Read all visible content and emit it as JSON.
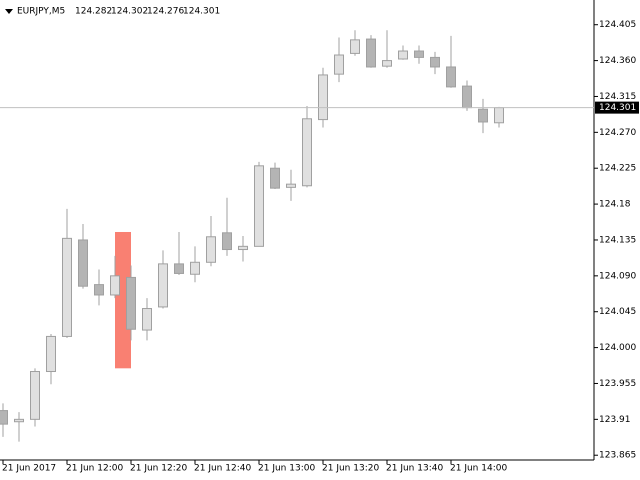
{
  "chart_data": {
    "type": "candlestick",
    "symbol": "EURJPY,M5",
    "categories": [
      "21 Jun 2017",
      null,
      null,
      null,
      "21 Jun 12:00",
      null,
      null,
      null,
      "21 Jun 12:20",
      null,
      null,
      null,
      "21 Jun 12:40",
      null,
      null,
      null,
      "21 Jun 13:00",
      null,
      null,
      null,
      "21 Jun 13:20",
      null,
      null,
      null,
      "21 Jun 13:40",
      null,
      null,
      null,
      "21 Jun 14:00",
      null,
      null,
      null
    ],
    "open": [
      123.921,
      123.907,
      123.91,
      123.97,
      124.014,
      124.135,
      124.079,
      124.066,
      124.088,
      124.022,
      124.051,
      124.105,
      124.092,
      124.107,
      124.144,
      124.123,
      124.127,
      124.225,
      124.201,
      124.203,
      124.286,
      124.343,
      124.369,
      124.387,
      124.353,
      124.362,
      124.372,
      124.364,
      124.352,
      124.328,
      124.299,
      124.282
    ],
    "high": [
      123.93,
      123.919,
      123.974,
      124.017,
      124.174,
      124.155,
      124.098,
      124.115,
      124.103,
      124.062,
      124.122,
      124.145,
      124.127,
      124.165,
      124.188,
      124.14,
      124.233,
      124.232,
      124.223,
      124.303,
      124.351,
      124.389,
      124.398,
      124.392,
      124.398,
      124.379,
      124.379,
      124.371,
      124.391,
      124.335,
      124.312,
      124.302
    ],
    "low": [
      123.888,
      123.882,
      123.901,
      123.954,
      124.012,
      124.074,
      124.053,
      124.062,
      124.009,
      124.009,
      124.049,
      124.091,
      124.082,
      124.102,
      124.115,
      124.108,
      124.127,
      124.199,
      124.184,
      124.201,
      124.276,
      124.333,
      124.366,
      124.351,
      124.351,
      124.361,
      124.356,
      124.343,
      124.326,
      124.297,
      124.269,
      124.276
    ],
    "close": [
      123.904,
      123.91,
      123.97,
      124.014,
      124.137,
      124.077,
      124.066,
      124.09,
      124.023,
      124.049,
      124.105,
      124.093,
      124.107,
      124.139,
      124.123,
      124.127,
      124.228,
      124.2,
      124.205,
      124.287,
      124.342,
      124.367,
      124.386,
      124.352,
      124.36,
      124.372,
      124.364,
      124.352,
      124.327,
      124.301,
      124.283,
      124.301
    ],
    "up_color": "#e0e0e0",
    "down_color": "#b4b4b4",
    "wick_color": "#a0a0a0",
    "highlight": {
      "high": 124.145,
      "low": 123.974,
      "color": "#f98072"
    },
    "ylim": [
      123.859,
      124.436
    ],
    "yticks": [
      123.865,
      123.91,
      123.955,
      {
        "value": 124,
        "label": "124.000"
      },
      124.045,
      {
        "value": 124.09,
        "label": "124.090"
      },
      124.135,
      124.18,
      124.225,
      {
        "value": 124.27,
        "label": "124.270"
      },
      124.315,
      {
        "value": 124.36,
        "label": "124.360"
      },
      124.405
    ]
  }
}
